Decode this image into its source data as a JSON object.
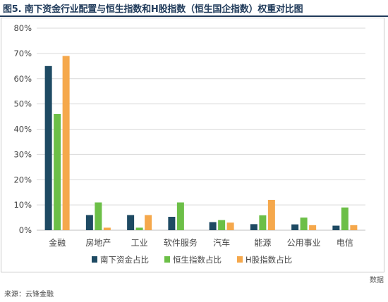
{
  "header": {
    "title": "图5. 南下资金行业配置与恒生指数和H股指数（恒生国企指数）权重对比图"
  },
  "footer": {
    "side_note": "数据",
    "source": "来源：云锋金融"
  },
  "colors": {
    "south_bound": "#1e4a63",
    "hsi": "#6cbf47",
    "hshares": "#f5a84c",
    "grid": "#d9d9d9",
    "axis": "#bfbfbf"
  },
  "chart_data": {
    "type": "bar",
    "title": "",
    "xlabel": "",
    "ylabel": "",
    "ylim": [
      0,
      0.8
    ],
    "yticks": [
      "0%",
      "10%",
      "20%",
      "30%",
      "40%",
      "50%",
      "60%",
      "70%",
      "80%"
    ],
    "grid": true,
    "legend_position": "bottom",
    "categories": [
      "金融",
      "房地产",
      "工业",
      "软件服务",
      "汽车",
      "能源",
      "公用事业",
      "电信"
    ],
    "series": [
      {
        "name": "南下资金占比",
        "color": "#1e4a63",
        "values": [
          0.65,
          0.06,
          0.06,
          0.053,
          0.032,
          0.024,
          0.023,
          0.018
        ]
      },
      {
        "name": "恒生指数占比",
        "color": "#6cbf47",
        "values": [
          0.46,
          0.11,
          0.01,
          0.11,
          0.04,
          0.059,
          0.05,
          0.09
        ]
      },
      {
        "name": "H股指数占比",
        "color": "#f5a84c",
        "values": [
          0.69,
          0.01,
          0.06,
          0.0,
          0.03,
          0.12,
          0.02,
          0.02
        ]
      }
    ]
  }
}
